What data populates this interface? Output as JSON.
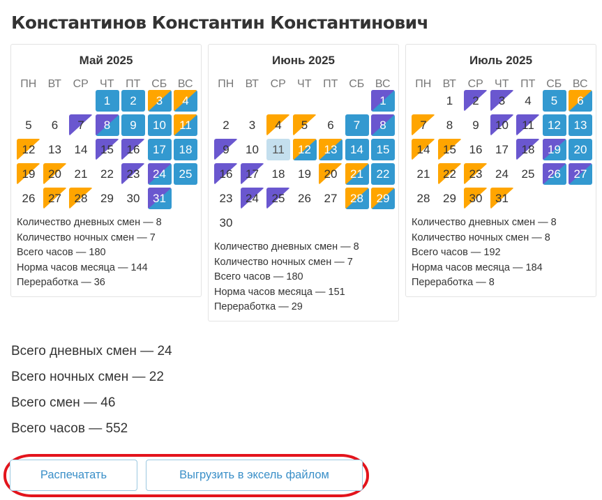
{
  "employee_name": "Константинов Константин Константинович",
  "weekdays": [
    "ПН",
    "ВТ",
    "СР",
    "ЧТ",
    "ПТ",
    "СБ",
    "ВС"
  ],
  "legend_colors": {
    "weekend": "#3399d0",
    "day_shift": "#ffa500",
    "night_shift": "#6a57cf",
    "today": "#c4dfee"
  },
  "months": [
    {
      "title": "Май 2025",
      "offset": 3,
      "days": [
        "B",
        "B",
        "BD",
        "BD",
        "",
        "",
        "N",
        "BN",
        "B",
        "B",
        "BD",
        "D",
        "",
        "",
        "N",
        "N",
        "B",
        "B",
        "D",
        "D",
        "",
        "",
        "N",
        "BN",
        "B",
        "",
        "D",
        "D",
        "",
        "",
        "BN"
      ],
      "stats": [
        "Количество дневных смен — 8",
        "Количество ночных смен — 7",
        "Всего часов — 180",
        "Норма часов месяца — 144",
        "Переработка — 36"
      ]
    },
    {
      "title": "Июнь 2025",
      "offset": 6,
      "days": [
        "BN",
        "",
        "",
        "D",
        "D",
        "",
        "B",
        "BN",
        "N",
        "",
        "T",
        "BD",
        "BD",
        "B",
        "B",
        "N",
        "N",
        "",
        "",
        "D",
        "BD",
        "B",
        "",
        "N",
        "N",
        "",
        "",
        "BD",
        "BD",
        ""
      ],
      "stats": [
        "Количество дневных смен — 8",
        "Количество ночных смен — 7",
        "Всего часов — 180",
        "Норма часов месяца — 151",
        "Переработка — 29"
      ]
    },
    {
      "title": "Июль 2025",
      "offset": 1,
      "days": [
        "",
        "N",
        "N",
        "",
        "B",
        "BD",
        "D",
        "",
        "",
        "N",
        "N",
        "B",
        "B",
        "D",
        "D",
        "",
        "",
        "N",
        "BN",
        "B",
        "",
        "D",
        "D",
        "",
        "",
        "BN",
        "BN",
        "",
        "",
        "D",
        "D"
      ],
      "stats": [
        "Количество дневных смен — 8",
        "Количество ночных смен — 8",
        "Всего часов — 192",
        "Норма часов месяца — 184",
        "Переработка — 8"
      ]
    }
  ],
  "totals": [
    "Всего дневных смен — 24",
    "Всего ночных смен — 22",
    "Всего смен — 46",
    "Всего часов — 552"
  ],
  "buttons": {
    "print": "Распечатать",
    "export": "Выгрузить в эксель файлом"
  }
}
